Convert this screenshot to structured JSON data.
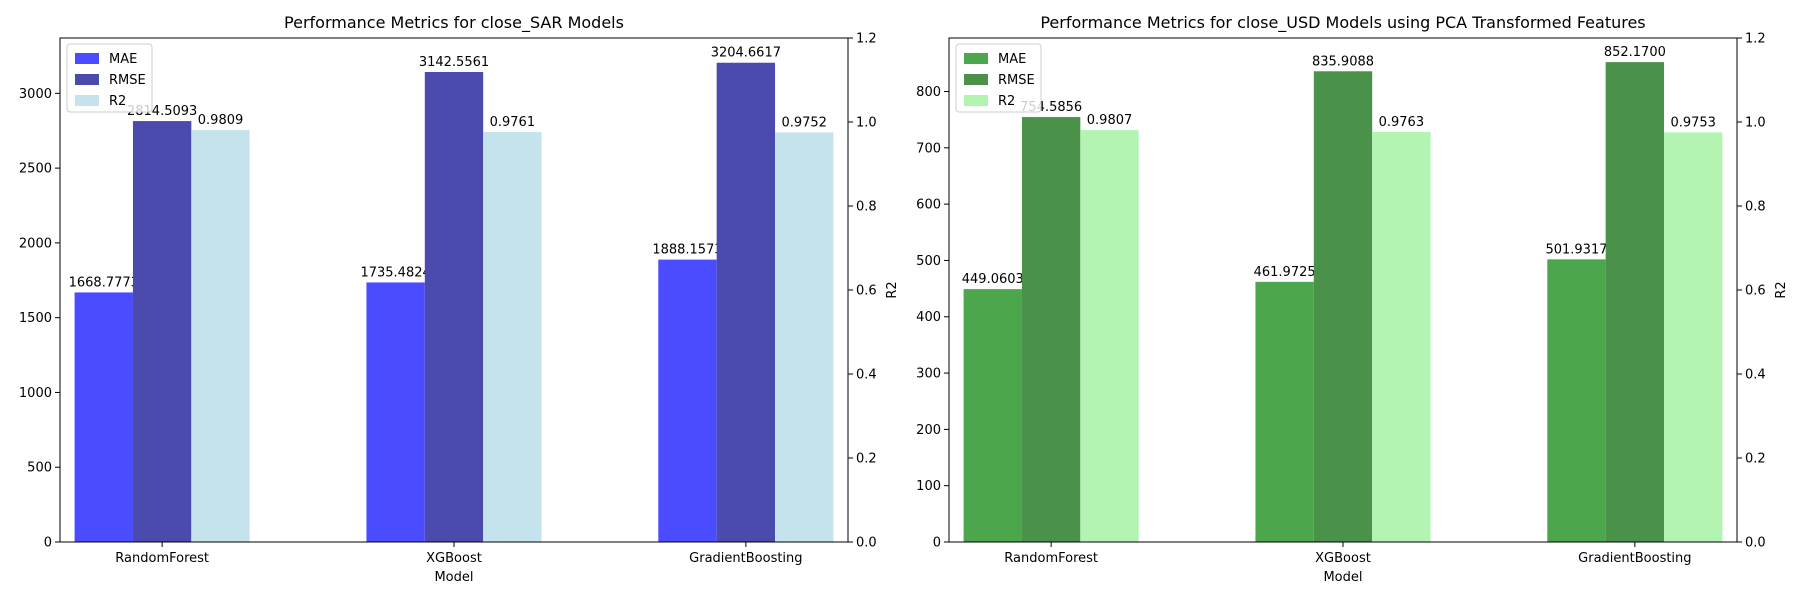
{
  "chart_data": [
    {
      "type": "bar",
      "title": "Performance Metrics for close_SAR Models",
      "xlabel": "Model",
      "ylabel": "",
      "y2label": "R2",
      "categories": [
        "RandomForest",
        "XGBoost",
        "GradientBoosting"
      ],
      "ylim": [
        0,
        3370
      ],
      "yticks": [
        0,
        500,
        1000,
        1500,
        2000,
        2500,
        3000
      ],
      "y2lim": [
        0,
        1.2
      ],
      "y2ticks": [
        "0.0",
        "0.2",
        "0.4",
        "0.6",
        "0.8",
        "1.0",
        "1.2"
      ],
      "legend_position": "top-left",
      "series": [
        {
          "name": "MAE",
          "axis": "left",
          "color": "#4b4bff",
          "values": [
            1668.7773,
            1735.4824,
            1888.1573
          ],
          "labels": [
            "1668.7773",
            "1735.4824",
            "1888.1573"
          ]
        },
        {
          "name": "RMSE",
          "axis": "left",
          "color": "#4b4bad",
          "values": [
            2814.5093,
            3142.5561,
            3204.6617
          ],
          "labels": [
            "2814.5093",
            "3142.5561",
            "3204.6617"
          ]
        },
        {
          "name": "R2",
          "axis": "right",
          "color": "#c4e3ed",
          "values": [
            0.9809,
            0.9761,
            0.9752
          ],
          "labels": [
            "0.9809",
            "0.9761",
            "0.9752"
          ]
        }
      ]
    },
    {
      "type": "bar",
      "title": "Performance Metrics for close_USD Models using PCA Transformed Features",
      "xlabel": "Model",
      "ylabel": "",
      "y2label": "R2",
      "categories": [
        "RandomForest",
        "XGBoost",
        "GradientBoosting"
      ],
      "ylim": [
        0,
        895
      ],
      "yticks": [
        0,
        100,
        200,
        300,
        400,
        500,
        600,
        700,
        800
      ],
      "y2lim": [
        0,
        1.2
      ],
      "y2ticks": [
        "0.0",
        "0.2",
        "0.4",
        "0.6",
        "0.8",
        "1.0",
        "1.2"
      ],
      "legend_position": "top-left",
      "series": [
        {
          "name": "MAE",
          "axis": "left",
          "color": "#4ca64c",
          "values": [
            449.0603,
            461.9725,
            501.9317
          ],
          "labels": [
            "449.0603",
            "461.9725",
            "501.9317"
          ]
        },
        {
          "name": "RMSE",
          "axis": "left",
          "color": "#4a914a",
          "values": [
            754.5856,
            835.9088,
            852.17
          ],
          "labels": [
            "754.5856",
            "835.9088",
            "852.1700"
          ]
        },
        {
          "name": "R2",
          "axis": "right",
          "color": "#b3f4b3",
          "values": [
            0.9807,
            0.9763,
            0.9753
          ],
          "labels": [
            "0.9807",
            "0.9763",
            "0.9753"
          ]
        }
      ]
    }
  ]
}
